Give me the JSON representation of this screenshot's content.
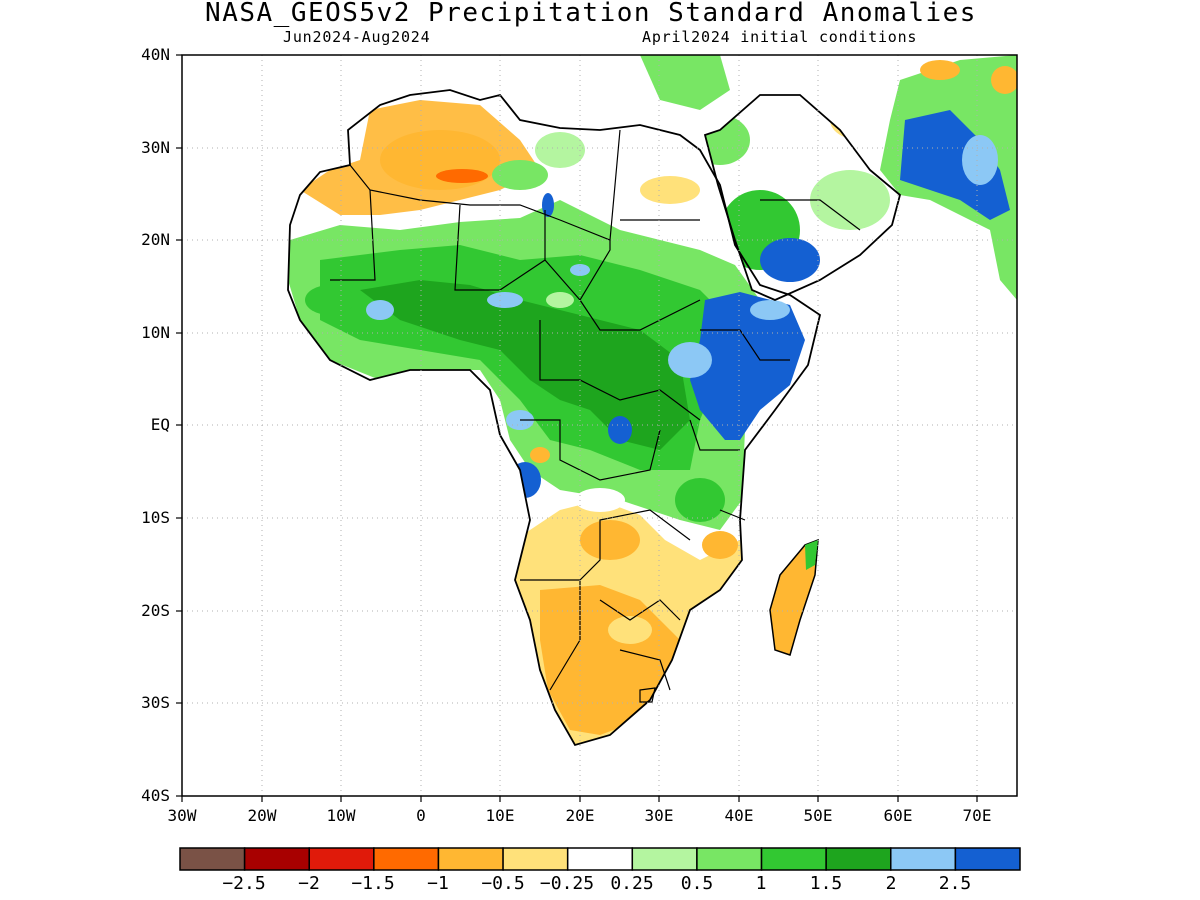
{
  "title": "NASA_GEOS5v2 Precipitation Standard Anomalies",
  "subtitle_left": "Jun2024-Aug2024",
  "subtitle_right": "April2024 initial conditions",
  "map": {
    "projection": "equirectangular",
    "lon_range": [
      -30,
      75
    ],
    "lat_range": [
      -40,
      40
    ],
    "graticule": "dotted",
    "y_ticks": [
      {
        "lat": 40,
        "label": "40N"
      },
      {
        "lat": 30,
        "label": "30N"
      },
      {
        "lat": 20,
        "label": "20N"
      },
      {
        "lat": 10,
        "label": "10N"
      },
      {
        "lat": 0,
        "label": "EQ"
      },
      {
        "lat": -10,
        "label": "10S"
      },
      {
        "lat": -20,
        "label": "20S"
      },
      {
        "lat": -30,
        "label": "30S"
      },
      {
        "lat": -40,
        "label": "40S"
      }
    ],
    "x_ticks": [
      {
        "lon": -30,
        "label": "30W"
      },
      {
        "lon": -20,
        "label": "20W"
      },
      {
        "lon": -10,
        "label": "10W"
      },
      {
        "lon": 0,
        "label": "0"
      },
      {
        "lon": 10,
        "label": "10E"
      },
      {
        "lon": 20,
        "label": "20E"
      },
      {
        "lon": 30,
        "label": "30E"
      },
      {
        "lon": 40,
        "label": "40E"
      },
      {
        "lon": 50,
        "label": "50E"
      },
      {
        "lon": 60,
        "label": "60E"
      },
      {
        "lon": 70,
        "label": "70E"
      }
    ]
  },
  "colorbar": {
    "colors": [
      "#7a5246",
      "#a80000",
      "#e01a0a",
      "#ff6a00",
      "#ffb732",
      "#ffe17a",
      "#ffffff",
      "#b4f5a0",
      "#78e664",
      "#32c832",
      "#1ea51e",
      "#8cc8f5",
      "#1460d2"
    ],
    "labels": [
      "-2.5",
      "-2",
      "-1.5",
      "-1",
      "-0.5",
      "-0.25",
      "0.25",
      "0.5",
      "1",
      "1.5",
      "2",
      "2.5"
    ]
  }
}
